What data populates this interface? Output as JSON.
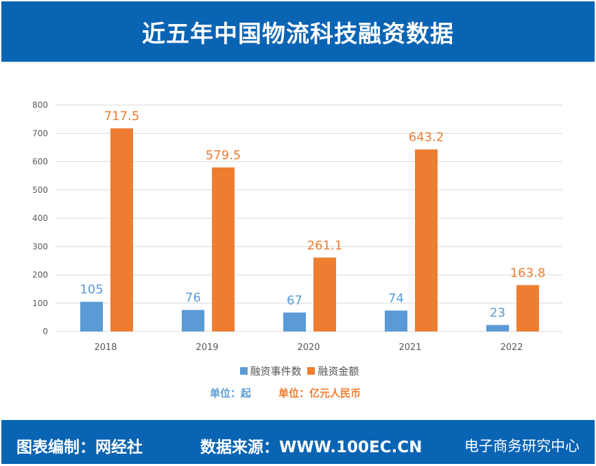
{
  "title": "近五年中国物流科技融资数据",
  "footer": {
    "credit": "图表编制：网经社",
    "source": "数据来源：WWW.100EC.CN",
    "watermark": "电子商务研究中心"
  },
  "units": {
    "count": "单位：起",
    "amount": "单位：亿元人民币"
  },
  "chart_data": {
    "type": "bar",
    "categories": [
      "2018",
      "2019",
      "2020",
      "2021",
      "2022"
    ],
    "series": [
      {
        "name": "融资事件数",
        "values": [
          105,
          76,
          67,
          74,
          23
        ],
        "color": "#5b9bd5"
      },
      {
        "name": "融资金额",
        "values": [
          717.5,
          579.5,
          261.1,
          643.2,
          163.8
        ],
        "color": "#ed7d31"
      }
    ],
    "ylim": [
      0,
      800
    ],
    "yticks": [
      0,
      100,
      200,
      300,
      400,
      500,
      600,
      700,
      800
    ],
    "grid": true,
    "legend": "bottom",
    "data_labels": true
  }
}
